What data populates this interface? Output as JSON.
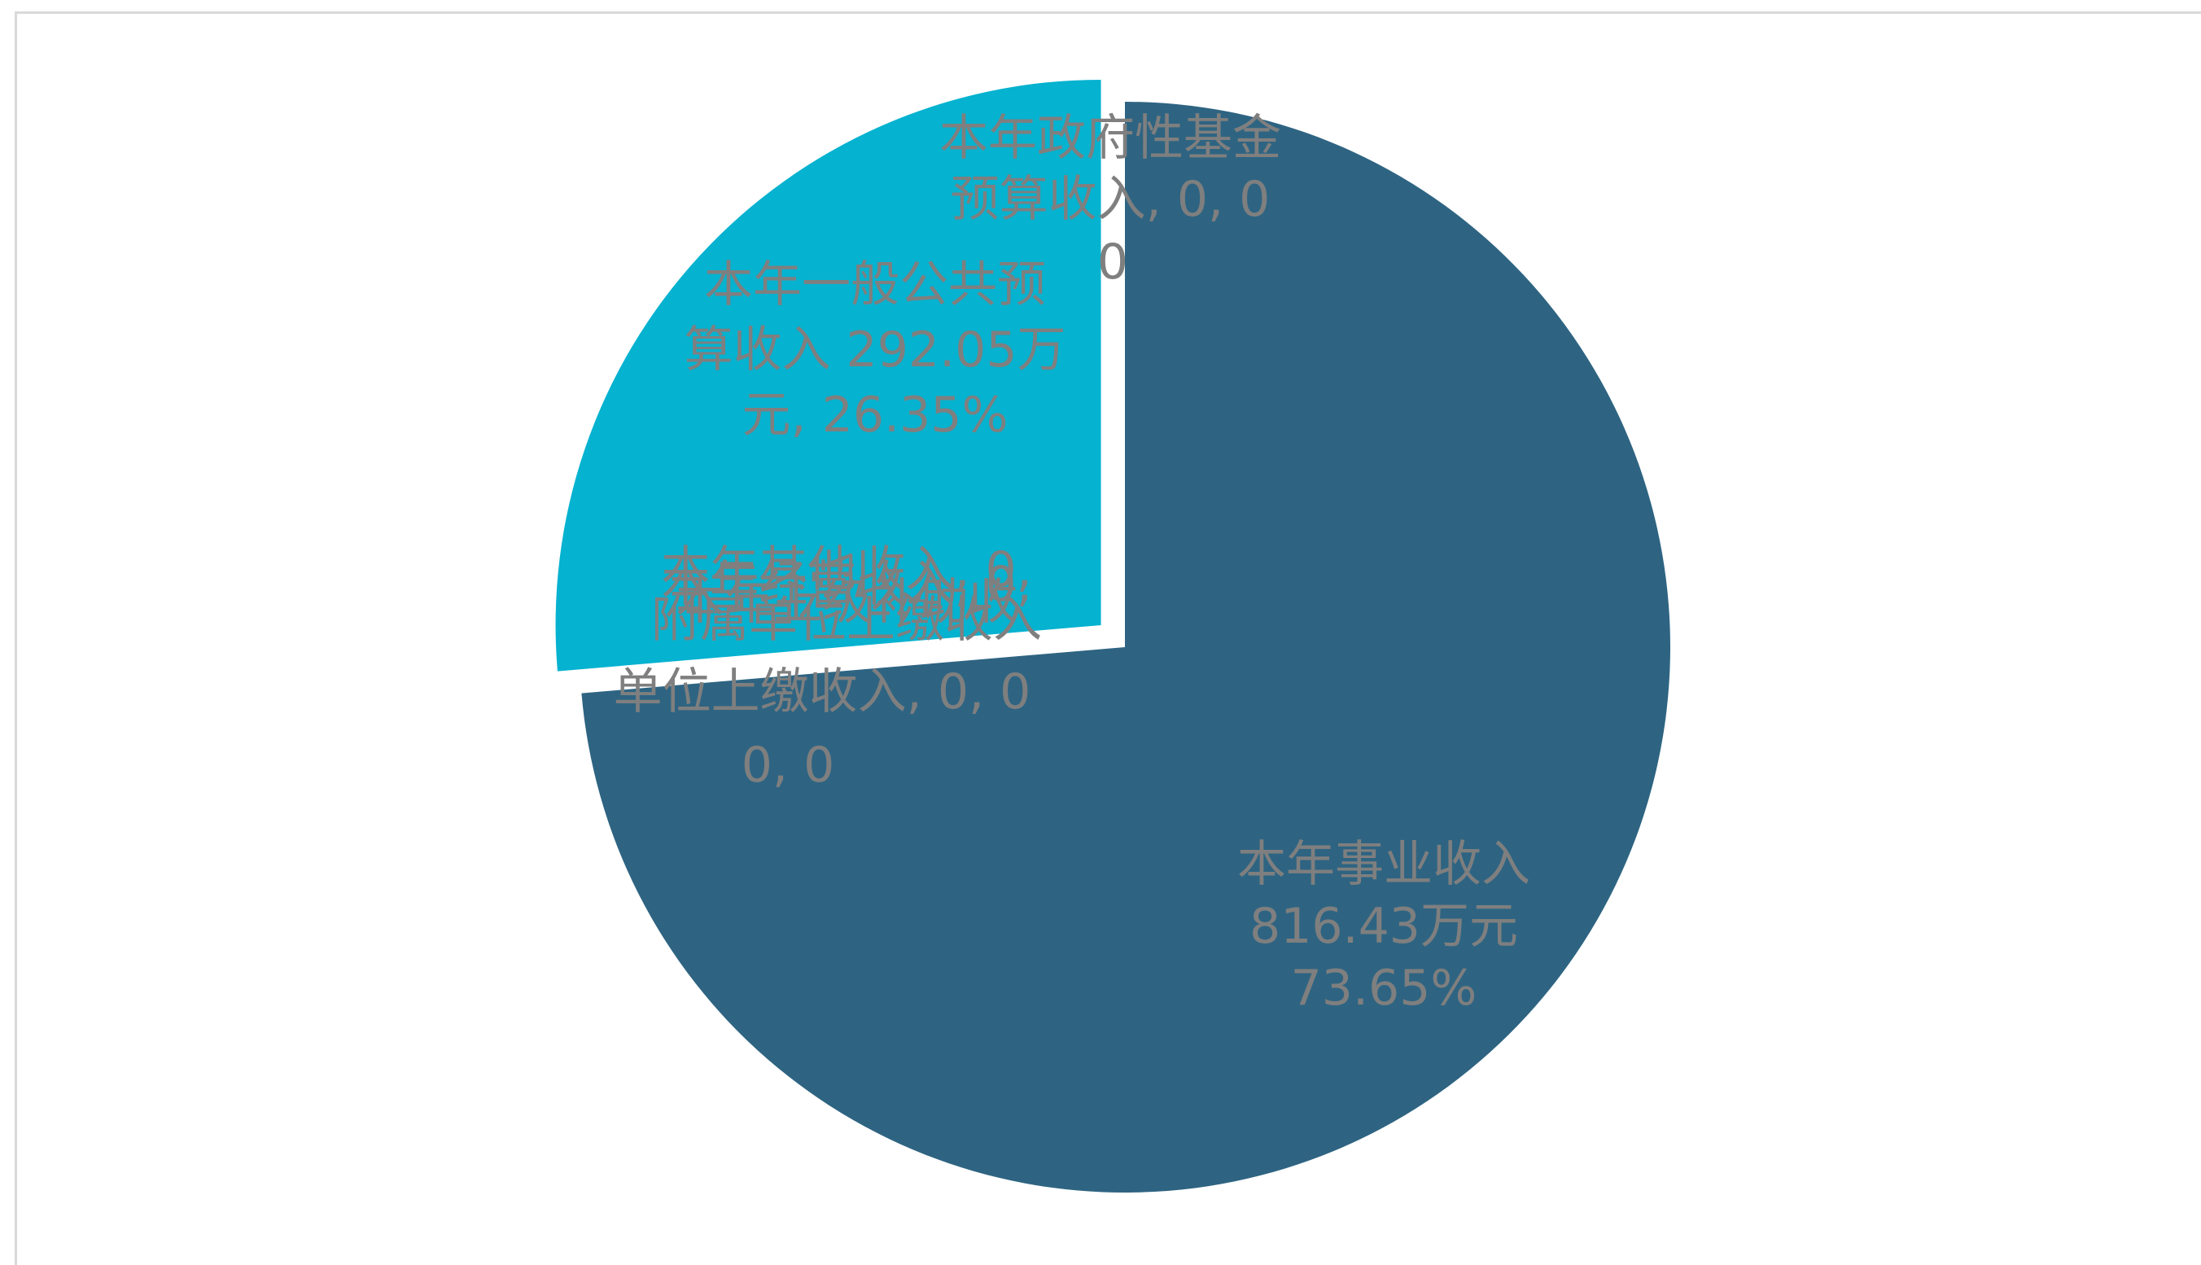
{
  "chart_data": {
    "type": "pie",
    "start_angle_deg": 0,
    "direction": "clockwise",
    "colors": [
      "#2e6482",
      "#05b2d0"
    ],
    "slices": [
      {
        "name": "本年事业收入",
        "value": 816.43,
        "unit": "万元",
        "percent": "73.65%",
        "label_lines": [
          "本年事业收入",
          "816.43万元",
          "73.65%"
        ],
        "color": "#2e6482",
        "exploded": false
      },
      {
        "name": "本年一般公共预算收入",
        "value": 292.05,
        "unit": "万元",
        "percent": "26.35%",
        "label_lines": [
          "本年一般公共预",
          "算收入 292.05万",
          "元, 26.35%"
        ],
        "color": "#05b2d0",
        "exploded": true
      }
    ],
    "zero_label_top": [
      "本年政府性基金",
      "预算收入, 0, 0"
    ],
    "zero_label_left": [
      "本年其他收入, 0,",
      "本年经营收入, 0,",
      "本年上级补助收",
      "附属单位上缴收入",
      "单位上缴收入, 0, 0"
    ],
    "zero_value_marks": [
      "0",
      "0, 0"
    ]
  }
}
